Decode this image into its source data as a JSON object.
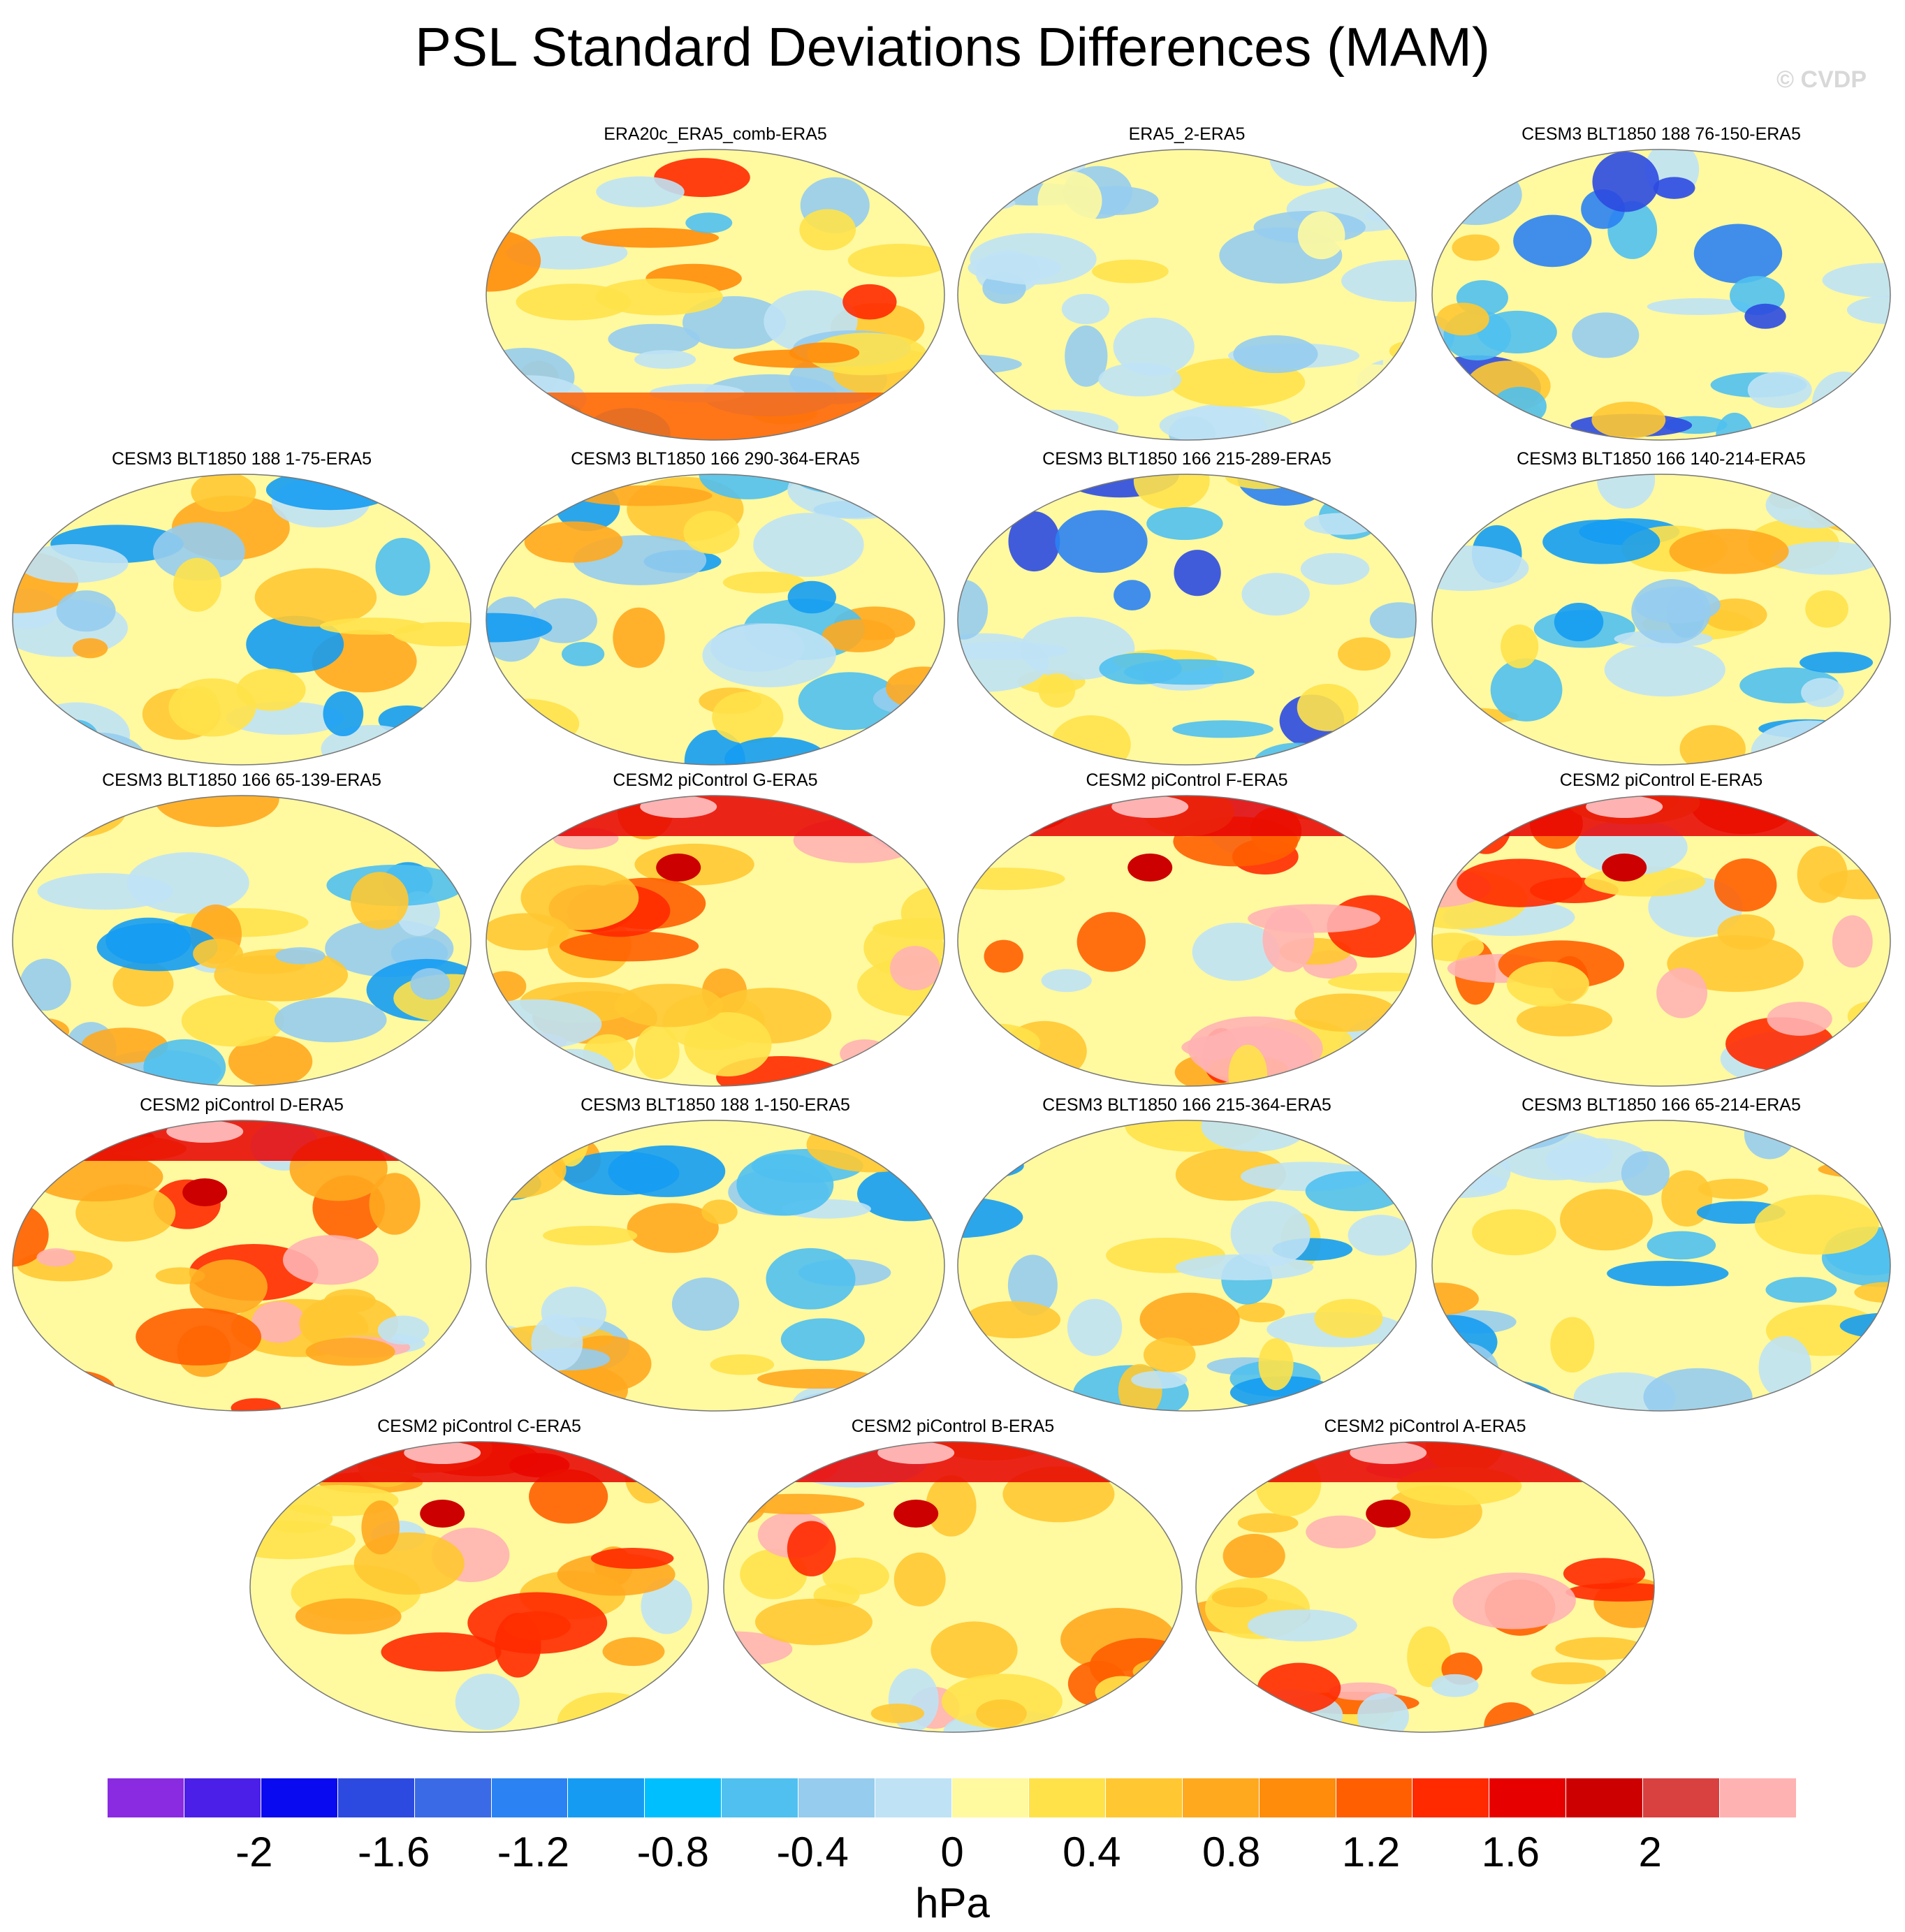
{
  "title": "PSL Standard Deviations Differences (MAM)",
  "credit": "© CVDP",
  "panels": [
    {
      "name": "ERA20c_ERA5_comb-ERA5",
      "pattern": "mix"
    },
    {
      "name": "ERA5_2-ERA5",
      "pattern": "near-zero"
    },
    {
      "name": "CESM3 BLT1850 188 76-150-ERA5",
      "pattern": "mixed-south-neg"
    },
    {
      "name": "CESM3 BLT1850 188 1-75-ERA5",
      "pattern": "mixed"
    },
    {
      "name": "CESM3 BLT1850 166 290-364-ERA5",
      "pattern": "mixed"
    },
    {
      "name": "CESM3 BLT1850 166 215-289-ERA5",
      "pattern": "mixed-south-neg"
    },
    {
      "name": "CESM3 BLT1850 166 140-214-ERA5",
      "pattern": "mixed"
    },
    {
      "name": "CESM3 BLT1850 166 65-139-ERA5",
      "pattern": "mixed"
    },
    {
      "name": "CESM2 piControl G-ERA5",
      "pattern": "positive"
    },
    {
      "name": "CESM2 piControl F-ERA5",
      "pattern": "positive"
    },
    {
      "name": "CESM2 piControl E-ERA5",
      "pattern": "positive"
    },
    {
      "name": "CESM2 piControl D-ERA5",
      "pattern": "positive"
    },
    {
      "name": "CESM3 BLT1850 188 1-150-ERA5",
      "pattern": "mixed"
    },
    {
      "name": "CESM3 BLT1850 166 215-364-ERA5",
      "pattern": "mixed"
    },
    {
      "name": "CESM3 BLT1850 166 65-214-ERA5",
      "pattern": "mixed"
    },
    {
      "name": "CESM2 piControl C-ERA5",
      "pattern": "positive"
    },
    {
      "name": "CESM2 piControl B-ERA5",
      "pattern": "positive"
    },
    {
      "name": "CESM2 piControl A-ERA5",
      "pattern": "positive"
    }
  ],
  "colorbar": {
    "unit": "hPa",
    "colors": [
      "#8a2be2",
      "#4b1fe8",
      "#0a0af0",
      "#2c4ae0",
      "#3a6ae6",
      "#2b82f2",
      "#159cf2",
      "#00bfff",
      "#50c0f0",
      "#96ccee",
      "#bfe2f5",
      "#fff9a0",
      "#ffe24a",
      "#ffc832",
      "#ffa91f",
      "#ff8c0a",
      "#ff5f00",
      "#ff2a00",
      "#e60000",
      "#cc0000",
      "#d94040",
      "#ffb2b2"
    ],
    "tick_labels": [
      "-2",
      "-1.6",
      "-1.2",
      "-0.8",
      "-0.4",
      "0",
      "0.4",
      "0.8",
      "1.2",
      "1.6",
      "2"
    ],
    "tick_values": [
      -2,
      -1.6,
      -1.2,
      -0.8,
      -0.4,
      0,
      0.4,
      0.8,
      1.2,
      1.6,
      2
    ],
    "range": [
      -2.2,
      2.2
    ]
  }
}
